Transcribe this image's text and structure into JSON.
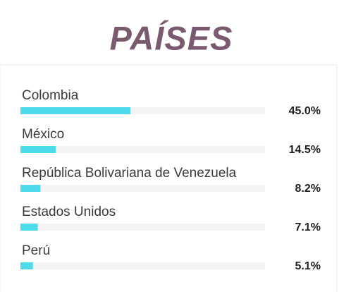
{
  "chart_data": {
    "type": "bar",
    "orientation": "horizontal",
    "title": "PAÍSES",
    "categories": [
      "Colombia",
      "México",
      "República Bolivariana de Venezuela",
      "Estados Unidos",
      "Perú"
    ],
    "values": [
      45.0,
      14.5,
      8.2,
      7.1,
      5.1
    ],
    "value_labels": [
      "45.0%",
      "14.5%",
      "8.2%",
      "7.1%",
      "5.1%"
    ],
    "color": "#4ddbec",
    "xlim": [
      0,
      100
    ]
  }
}
